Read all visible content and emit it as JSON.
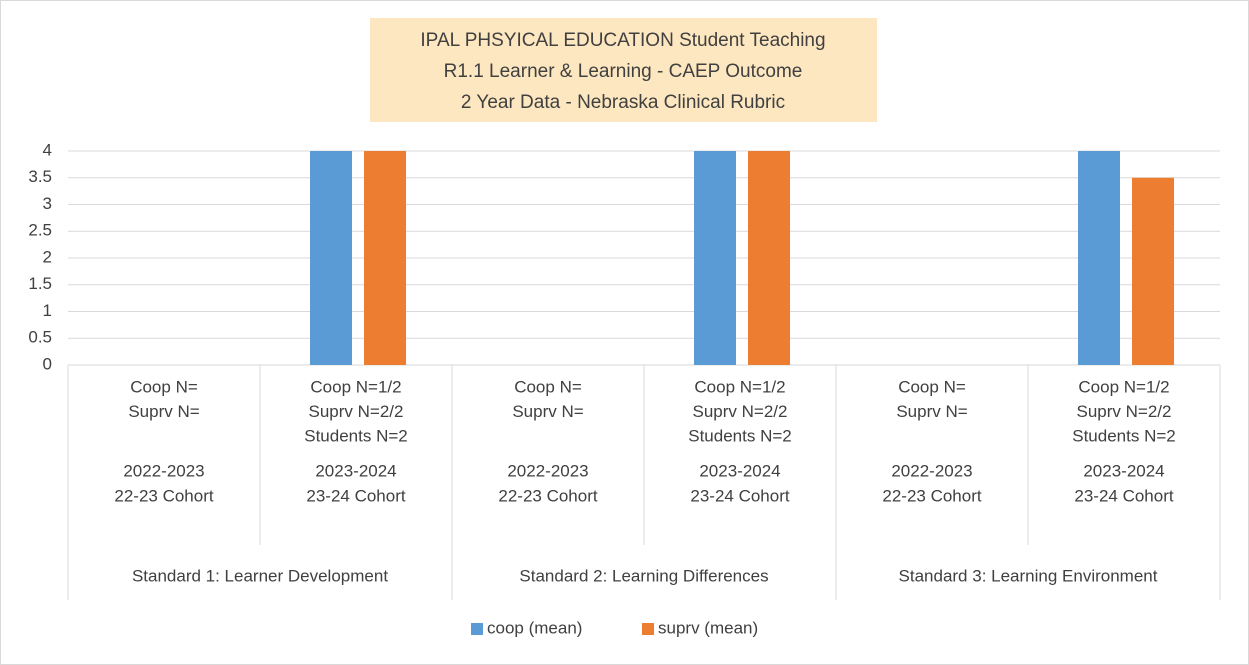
{
  "chart_data": {
    "type": "bar",
    "title": [
      "IPAL PHSYICAL EDUCATION Student Teaching",
      "R1.1 Learner & Learning - CAEP Outcome",
      "2 Year Data - Nebraska Clinical Rubric"
    ],
    "categories": [
      [
        "Coop N=",
        "Suprv N=",
        "2022-2023",
        "22-23 Cohort"
      ],
      [
        "Coop N=1/2",
        "Suprv N=2/2",
        "Students N=2",
        "2023-2024",
        "23-24 Cohort"
      ],
      [
        "Coop N=",
        "Suprv N=",
        "2022-2023",
        "22-23 Cohort"
      ],
      [
        "Coop N=1/2",
        "Suprv N=2/2",
        "Students N=2",
        "2023-2024",
        "23-24 Cohort"
      ],
      [
        "Coop N=",
        "Suprv N=",
        "2022-2023",
        "22-23 Cohort"
      ],
      [
        "Coop N=1/2",
        "Suprv N=2/2",
        "Students N=2",
        "2023-2024",
        "23-24 Cohort"
      ]
    ],
    "groups": [
      "Standard 1: Learner Development",
      "Standard 2: Learning Differences",
      "Standard 3: Learning Environment"
    ],
    "series": [
      {
        "name": "coop (mean)",
        "color": "#5b9bd5",
        "values": [
          null,
          4,
          null,
          4,
          null,
          4
        ]
      },
      {
        "name": "suprv (mean)",
        "color": "#ed7d31",
        "values": [
          null,
          4,
          null,
          4,
          null,
          3.5
        ]
      }
    ],
    "ylim": [
      0,
      4
    ],
    "yticks": [
      0,
      0.5,
      1,
      1.5,
      2,
      2.5,
      3,
      3.5,
      4
    ],
    "grid": true,
    "legend": "bottom"
  }
}
